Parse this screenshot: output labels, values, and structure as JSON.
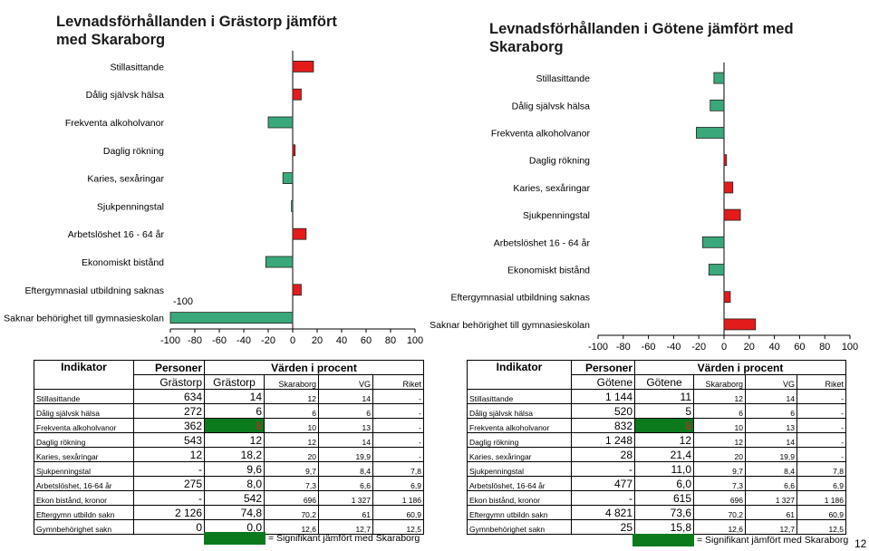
{
  "chart_data": [
    {
      "type": "bar",
      "orientation": "horizontal",
      "title": "Levnadsförhållanden i Grästorp jämfört med Skaraborg",
      "categories": [
        "Stillasittande",
        "Dålig självsk hälsa",
        "Frekventa alkoholvanor",
        "Daglig rökning",
        "Karies, sexåringar",
        "Sjukpenningstal",
        "Arbetslöshet 16 - 64 år",
        "Ekonomiskt bistånd",
        "Eftergymnasial utbildning saknas",
        "Saknar behörighet till gymnasieskolan"
      ],
      "values": [
        17,
        7,
        -20,
        2,
        -8,
        -1,
        11,
        -22,
        7,
        -100
      ],
      "colors": [
        "#e31b1b",
        "#e31b1b",
        "#3aa87a",
        "#e31b1b",
        "#3aa87a",
        "#3aa87a",
        "#e31b1b",
        "#3aa87a",
        "#e31b1b",
        "#3aa87a"
      ],
      "xlim": [
        -100,
        100
      ],
      "xticks": [
        "-100",
        "-80",
        "-60",
        "-40",
        "-20",
        "0",
        "20",
        "40",
        "60",
        "80",
        "100"
      ],
      "annotation": "-100"
    },
    {
      "type": "bar",
      "orientation": "horizontal",
      "title": "Levnadsförhållanden i Götene jämfört med Skaraborg",
      "categories": [
        "Stillasittande",
        "Dålig självsk hälsa",
        "Frekventa alkoholvanor",
        "Daglig rökning",
        "Karies, sexåringar",
        "Sjukpenningstal",
        "Arbetslöshet 16 - 64 år",
        "Ekonomiskt bistånd",
        "Eftergymnasial utbildning saknas",
        "Saknar behörighet till gymnasieskolan"
      ],
      "values": [
        -8,
        -11,
        -22,
        2,
        7,
        13,
        -17,
        -12,
        5,
        25
      ],
      "colors": [
        "#3aa87a",
        "#3aa87a",
        "#3aa87a",
        "#e31b1b",
        "#e31b1b",
        "#e31b1b",
        "#3aa87a",
        "#3aa87a",
        "#e31b1b",
        "#e31b1b"
      ],
      "xlim": [
        -100,
        100
      ],
      "xticks": [
        "-100",
        "-80",
        "-60",
        "-40",
        "-20",
        "0",
        "20",
        "40",
        "60",
        "80",
        "100"
      ]
    }
  ],
  "left": {
    "title": "Levnadsförhållanden i Grästorp jämfört med Skaraborg",
    "table": {
      "h_indikator": "Indikator",
      "h_personer": "Personer",
      "h_varden": "Värden i procent",
      "sub": [
        "Grästorp",
        "Grästorp",
        "Skaraborg",
        "VG",
        "Riket"
      ],
      "rows": [
        {
          "name": "Stillasittande",
          "n": "634",
          "v": "14",
          "s": "12",
          "vg": "14",
          "r": "-"
        },
        {
          "name": "Dålig självsk hälsa",
          "n": "272",
          "v": "6",
          "s": "6",
          "vg": "6",
          "r": "-"
        },
        {
          "name": "Frekventa alkoholvanor",
          "n": "362",
          "v": "8",
          "s": "10",
          "vg": "13",
          "r": "-"
        },
        {
          "name": "Daglig rökning",
          "n": "543",
          "v": "12",
          "s": "12",
          "vg": "14",
          "r": "-"
        },
        {
          "name": "Karies, sexåringar",
          "n": "12",
          "v": "18,2",
          "s": "20",
          "vg": "19,9",
          "r": "-"
        },
        {
          "name": "Sjukpenningstal",
          "n": "-",
          "v": "9,6",
          "s": "9,7",
          "vg": "8,4",
          "r": "7,8"
        },
        {
          "name": "Arbetslöshet, 16-64 år",
          "n": "275",
          "v": "8,0",
          "s": "7,3",
          "vg": "6,6",
          "r": "6,9"
        },
        {
          "name": "Ekon bistånd, kronor",
          "n": "-",
          "v": "542",
          "s": "696",
          "vg": "1 327",
          "r": "1 186"
        },
        {
          "name": "Eftergymn utbildn sakn",
          "n": "2 126",
          "v": "74,8",
          "s": "70,2",
          "vg": "61",
          "r": "60,9"
        },
        {
          "name": "Gymnbehörighet sakn",
          "n": "0",
          "v": "0,0",
          "s": "12,6",
          "vg": "12,7",
          "r": "12,5"
        }
      ]
    },
    "legend": "= Signifikant jämfört med Skaraborg"
  },
  "right": {
    "title": "Levnadsförhållanden i Götene jämfört med Skaraborg",
    "table": {
      "h_indikator": "Indikator",
      "h_personer": "Personer",
      "h_varden": "Värden i procent",
      "sub": [
        "Götene",
        "Götene",
        "Skaraborg",
        "VG",
        "Riket"
      ],
      "rows": [
        {
          "name": "Stillasittande",
          "n": "1 144",
          "v": "11",
          "s": "12",
          "vg": "14",
          "r": "-"
        },
        {
          "name": "Dålig självsk hälsa",
          "n": "520",
          "v": "5",
          "s": "6",
          "vg": "6",
          "r": "-"
        },
        {
          "name": "Frekventa alkoholvanor",
          "n": "832",
          "v": "8",
          "s": "10",
          "vg": "13",
          "r": "-"
        },
        {
          "name": "Daglig rökning",
          "n": "1 248",
          "v": "12",
          "s": "12",
          "vg": "14",
          "r": "-"
        },
        {
          "name": "Karies, sexåringar",
          "n": "28",
          "v": "21,4",
          "s": "20",
          "vg": "19,9",
          "r": "-"
        },
        {
          "name": "Sjukpenningstal",
          "n": "-",
          "v": "11,0",
          "s": "9,7",
          "vg": "8,4",
          "r": "7,8"
        },
        {
          "name": "Arbetslöshet, 16-64 år",
          "n": "477",
          "v": "6,0",
          "s": "7,3",
          "vg": "6,6",
          "r": "6,9"
        },
        {
          "name": "Ekon bistånd, kronor",
          "n": "-",
          "v": "615",
          "s": "696",
          "vg": "1 327",
          "r": "1 186"
        },
        {
          "name": "Eftergymn utbildn sakn",
          "n": "4 821",
          "v": "73,6",
          "s": "70,2",
          "vg": "61",
          "r": "60,9"
        },
        {
          "name": "Gymnbehörighet sakn",
          "n": "25",
          "v": "15,8",
          "s": "12,6",
          "vg": "12,7",
          "r": "12,5"
        }
      ]
    },
    "legend": "= Signifikant jämfört med Skaraborg"
  },
  "page_number": "12"
}
